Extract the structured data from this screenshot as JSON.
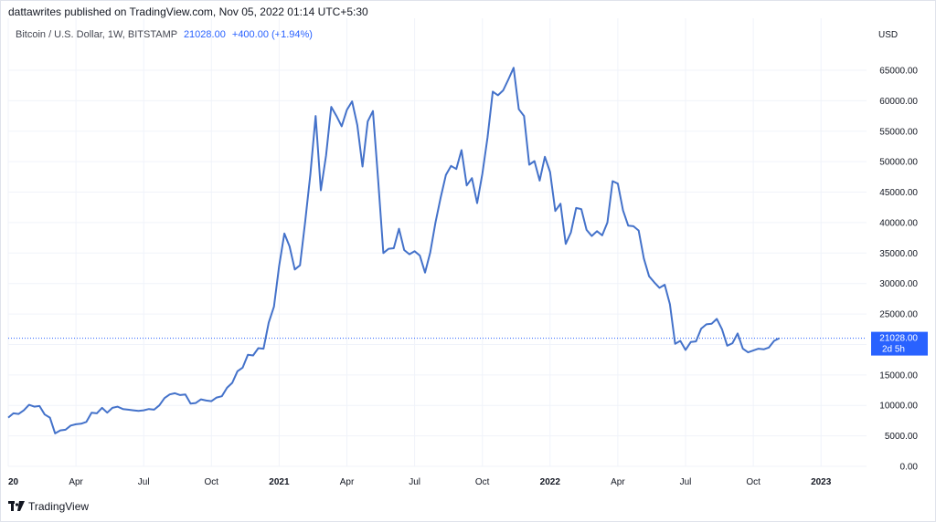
{
  "header": {
    "published": "dattawrites published on TradingView.com, Nov 05, 2022 01:14 UTC+5:30"
  },
  "legend": {
    "symbol": "Bitcoin / U.S. Dollar, 1W, BITSTAMP",
    "last": "21028.00",
    "change": "+400.00 (+1.94%)"
  },
  "footer": {
    "brand": "TradingView"
  },
  "colors": {
    "line": "#4472ca",
    "accent": "#2962ff",
    "grid": "#f0f3fa"
  },
  "chart_data": {
    "type": "line",
    "currency_label": "USD",
    "y_ticks": [
      "0.00",
      "5000.00",
      "10000.00",
      "15000.00",
      "20000.00",
      "25000.00",
      "30000.00",
      "35000.00",
      "40000.00",
      "45000.00",
      "50000.00",
      "55000.00",
      "60000.00",
      "65000.00"
    ],
    "ylim": [
      0,
      70000
    ],
    "x_ticks": [
      {
        "label": "20",
        "x": 0,
        "bold": true
      },
      {
        "label": "Apr",
        "x": 13,
        "bold": false
      },
      {
        "label": "Jul",
        "x": 26,
        "bold": false
      },
      {
        "label": "Oct",
        "x": 39,
        "bold": false
      },
      {
        "label": "2021",
        "x": 52,
        "bold": true
      },
      {
        "label": "Apr",
        "x": 65,
        "bold": false
      },
      {
        "label": "Jul",
        "x": 78,
        "bold": false
      },
      {
        "label": "Oct",
        "x": 91,
        "bold": false
      },
      {
        "label": "2022",
        "x": 104,
        "bold": true
      },
      {
        "label": "Apr",
        "x": 117,
        "bold": false
      },
      {
        "label": "Jul",
        "x": 130,
        "bold": false
      },
      {
        "label": "Oct",
        "x": 143,
        "bold": false
      },
      {
        "label": "2023",
        "x": 156,
        "bold": true
      }
    ],
    "last_price": 21028,
    "last_price_label": "21028.00",
    "countdown_label": "2d 5h",
    "grid": true,
    "series": [
      {
        "values": [
          8000,
          8700,
          8600,
          9200,
          10100,
          9800,
          9900,
          8500,
          8000,
          5400,
          5900,
          6000,
          6700,
          6900,
          7000,
          7300,
          8800,
          8700,
          9600,
          8800,
          9600,
          9800,
          9400,
          9300,
          9200,
          9100,
          9200,
          9400,
          9300,
          10000,
          11200,
          11800,
          12000,
          11700,
          11800,
          10300,
          10400,
          11000,
          10800,
          10700,
          11300,
          11500,
          12900,
          13700,
          15600,
          16200,
          18300,
          18200,
          19400,
          19300,
          23600,
          26200,
          32900,
          38200,
          36100,
          32300,
          33000,
          40200,
          48000,
          57500,
          45300,
          51000,
          59000,
          57500,
          55800,
          58500,
          59900,
          56000,
          49200,
          56600,
          58300,
          47000,
          35000,
          35700,
          35800,
          39000,
          35500,
          34800,
          35300,
          34600,
          31800,
          35100,
          40000,
          44100,
          47800,
          49300,
          48800,
          51900,
          46100,
          47300,
          43200,
          48000,
          54000,
          61500,
          60900,
          61700,
          63500,
          65400,
          58600,
          57500,
          49500,
          50100,
          46900,
          50800,
          48300,
          41900,
          43100,
          36500,
          38400,
          42400,
          42200,
          38800,
          37800,
          38600,
          37900,
          40000,
          46800,
          46400,
          42000,
          39500,
          39400,
          38700,
          34100,
          31200,
          30200,
          29300,
          29800,
          26600,
          20100,
          20600,
          19100,
          20400,
          20500,
          22600,
          23300,
          23400,
          24200,
          22500,
          19800,
          20200,
          21800,
          19300,
          18700,
          19000,
          19300,
          19200,
          19500,
          20600,
          21028
        ]
      }
    ]
  }
}
